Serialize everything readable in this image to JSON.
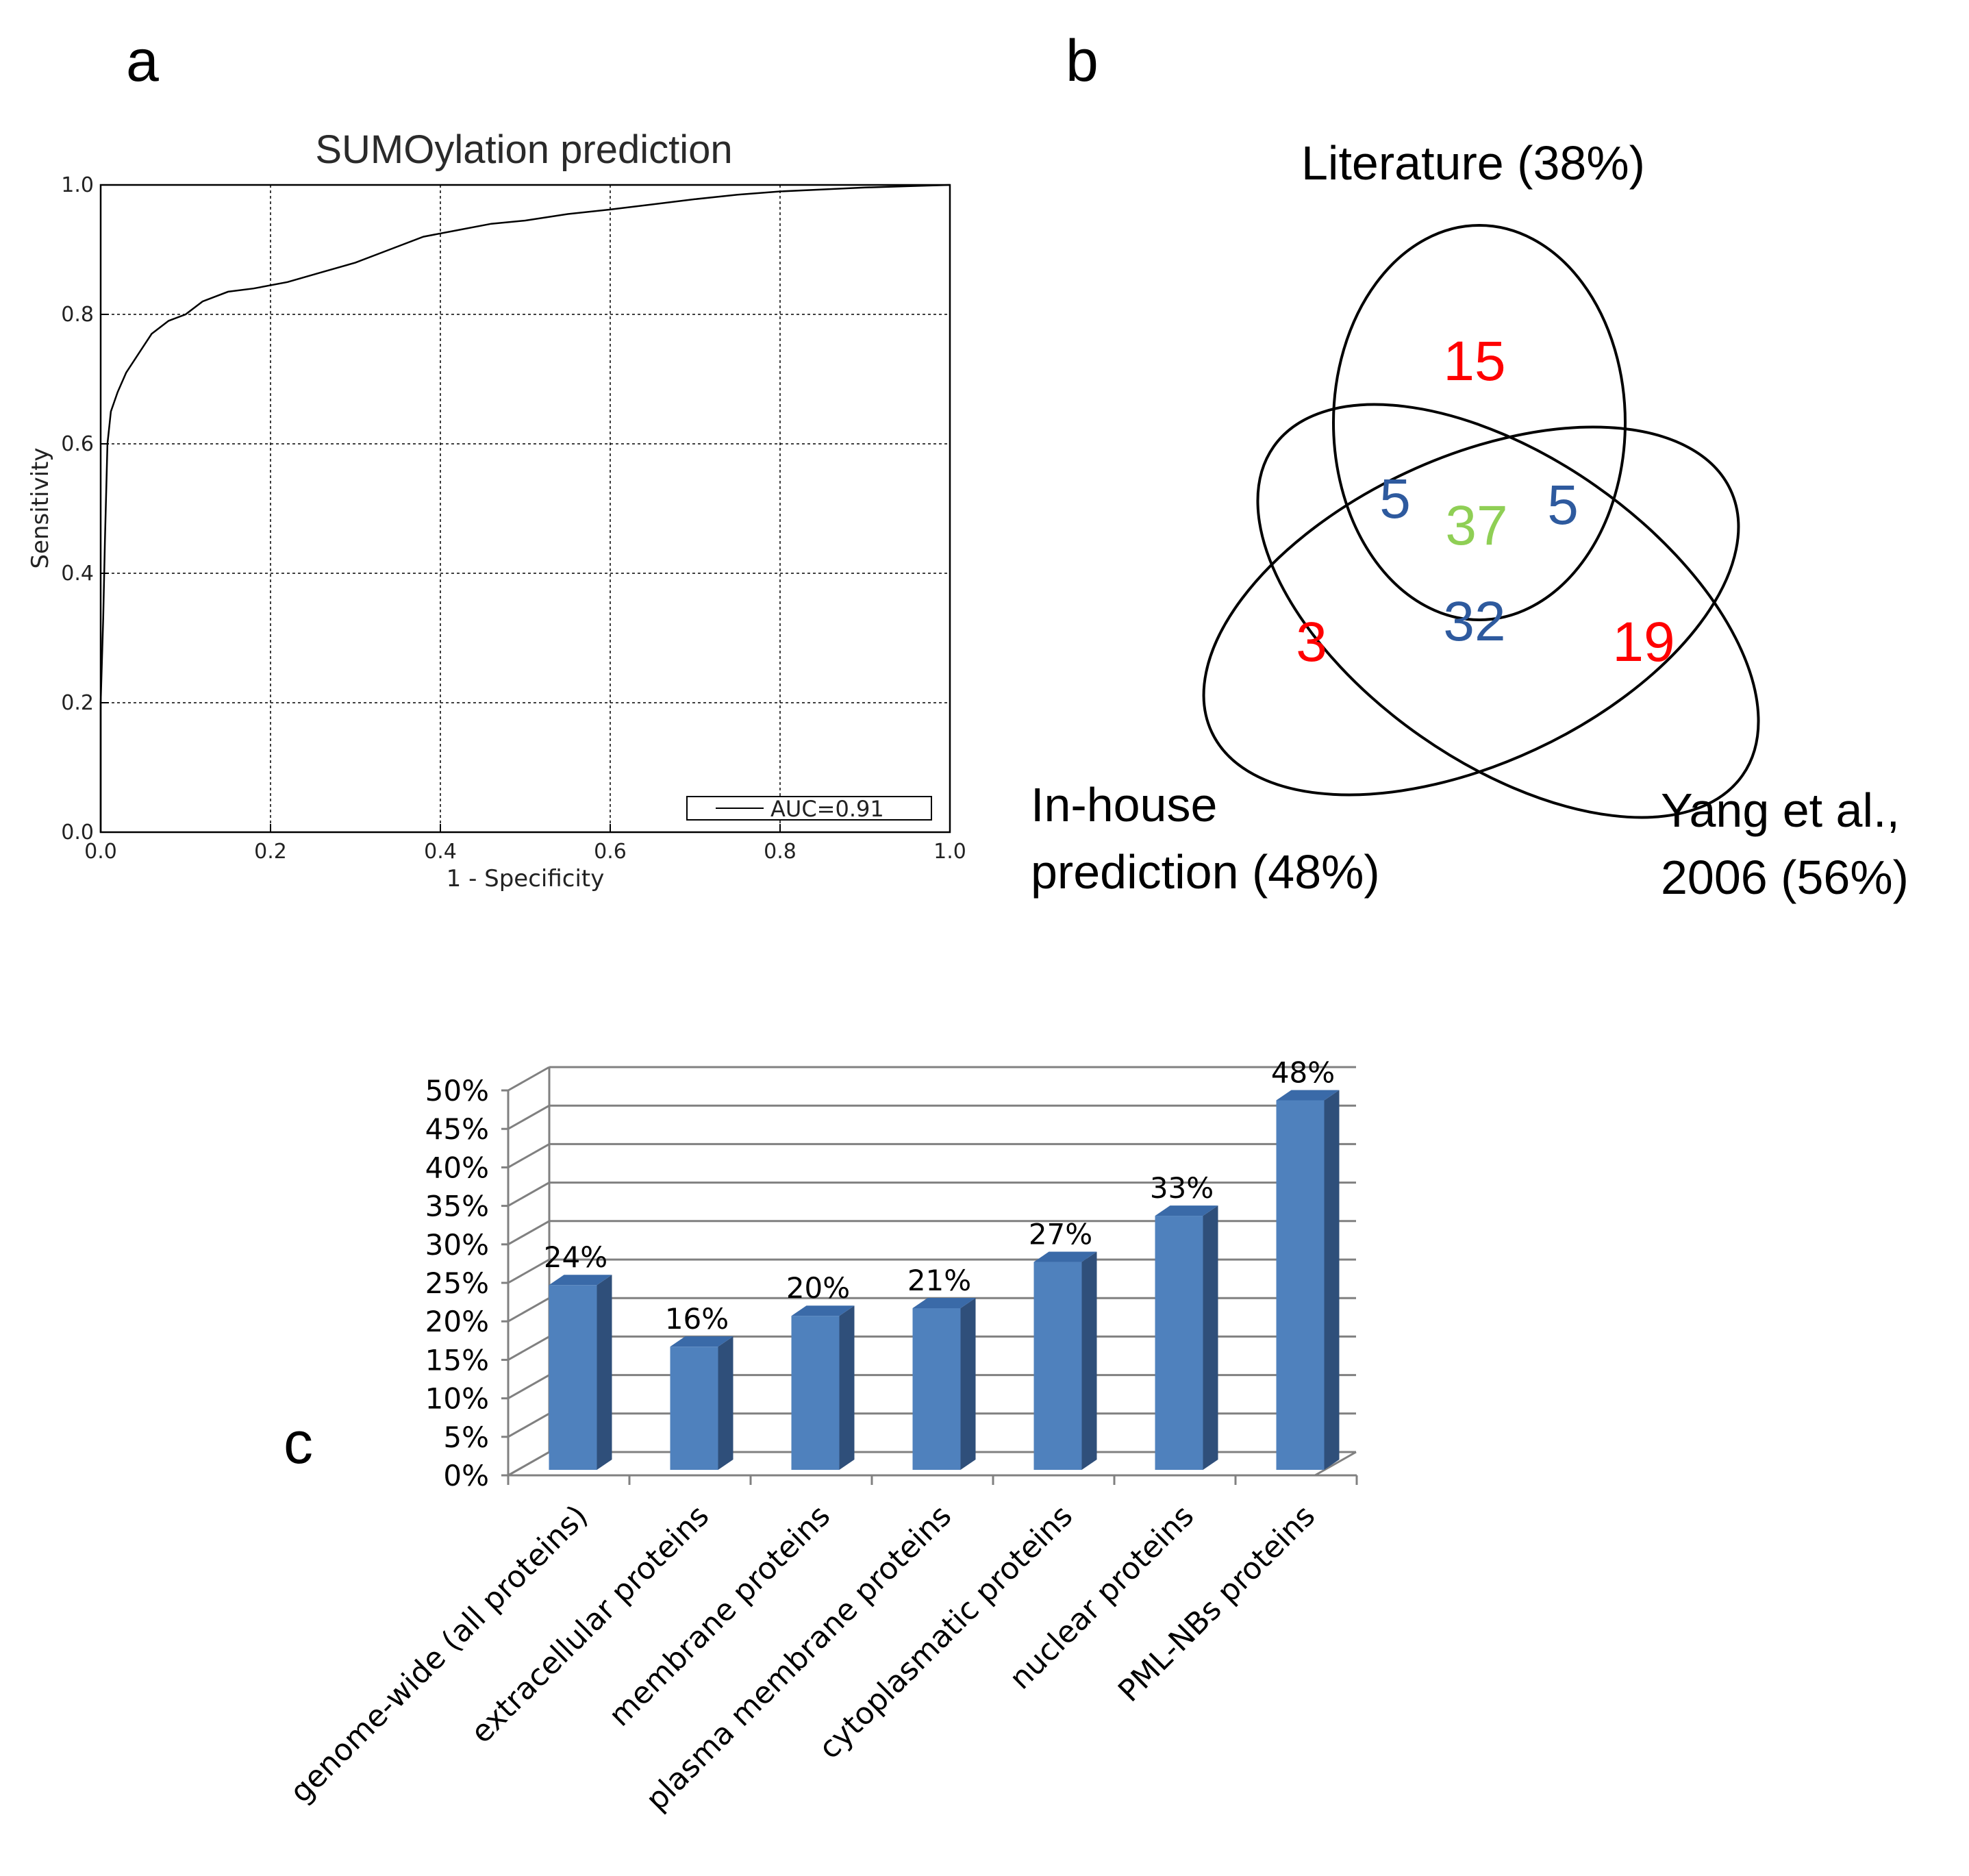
{
  "panels": {
    "a": "a",
    "b": "b",
    "c": "c"
  },
  "colors": {
    "venn_unique": "#ff0000",
    "venn_pairwise": "#2e5a9e",
    "venn_triple": "#8fcf55",
    "bar_front": "#4f81bd",
    "bar_side": "#2f4f7a",
    "bar_top": "#3a6aa8"
  },
  "chart_data": [
    {
      "type": "line",
      "title": "SUMOylation prediction",
      "xlabel": "1 - Specificity",
      "ylabel": "Sensitivity",
      "xlim": [
        0.0,
        1.0
      ],
      "ylim": [
        0.0,
        1.0
      ],
      "x_ticks": [
        "0.0",
        "0.2",
        "0.4",
        "0.6",
        "0.8",
        "1.0"
      ],
      "y_ticks": [
        "0.0",
        "0.2",
        "0.4",
        "0.6",
        "0.8",
        "1.0"
      ],
      "grid": true,
      "legend": "bottom-right",
      "series": [
        {
          "name": "AUC=0.91",
          "x": [
            0.0,
            0.0,
            0.003,
            0.005,
            0.008,
            0.012,
            0.02,
            0.03,
            0.045,
            0.06,
            0.08,
            0.1,
            0.12,
            0.15,
            0.18,
            0.22,
            0.26,
            0.3,
            0.34,
            0.38,
            0.42,
            0.46,
            0.5,
            0.55,
            0.6,
            0.65,
            0.7,
            0.75,
            0.8,
            0.85,
            0.9,
            0.95,
            1.0
          ],
          "y": [
            0.0,
            0.2,
            0.33,
            0.45,
            0.6,
            0.65,
            0.68,
            0.71,
            0.74,
            0.77,
            0.79,
            0.8,
            0.82,
            0.835,
            0.84,
            0.85,
            0.865,
            0.88,
            0.9,
            0.92,
            0.93,
            0.94,
            0.945,
            0.955,
            0.962,
            0.97,
            0.978,
            0.985,
            0.99,
            0.993,
            0.996,
            0.998,
            1.0
          ]
        }
      ]
    },
    {
      "type": "venn",
      "sets": [
        {
          "name": "Literature (38%)",
          "label_lines": [
            "Literature (38%)"
          ]
        },
        {
          "name": "In-house prediction (48%)",
          "label_lines": [
            "In-house",
            "prediction (48%)"
          ]
        },
        {
          "name": "Yang et al., 2006 (56%)",
          "label_lines": [
            "Yang et al.,",
            "2006 (56%)"
          ]
        }
      ],
      "regions": {
        "literature_only": "15",
        "inhouse_only": "3",
        "yang_only": "19",
        "literature_inhouse": "5",
        "literature_yang": "5",
        "inhouse_yang": "32",
        "all_three": "37"
      }
    },
    {
      "type": "bar",
      "style": "3d",
      "categories": [
        "genome-wide (all proteins)",
        "extracellular proteins",
        "membrane proteins",
        "plasma membrane proteins",
        "cytoplasmatic proteins",
        "nuclear proteins",
        "PML-NBs proteins"
      ],
      "values": [
        24,
        16,
        20,
        21,
        27,
        33,
        48
      ],
      "value_labels": [
        "24%",
        "16%",
        "20%",
        "21%",
        "27%",
        "33%",
        "48%"
      ],
      "ylim": [
        0,
        50
      ],
      "y_ticks": [
        "0%",
        "5%",
        "10%",
        "15%",
        "20%",
        "25%",
        "30%",
        "35%",
        "40%",
        "45%",
        "50%"
      ],
      "grid": true,
      "xlabel": "",
      "ylabel": ""
    }
  ]
}
